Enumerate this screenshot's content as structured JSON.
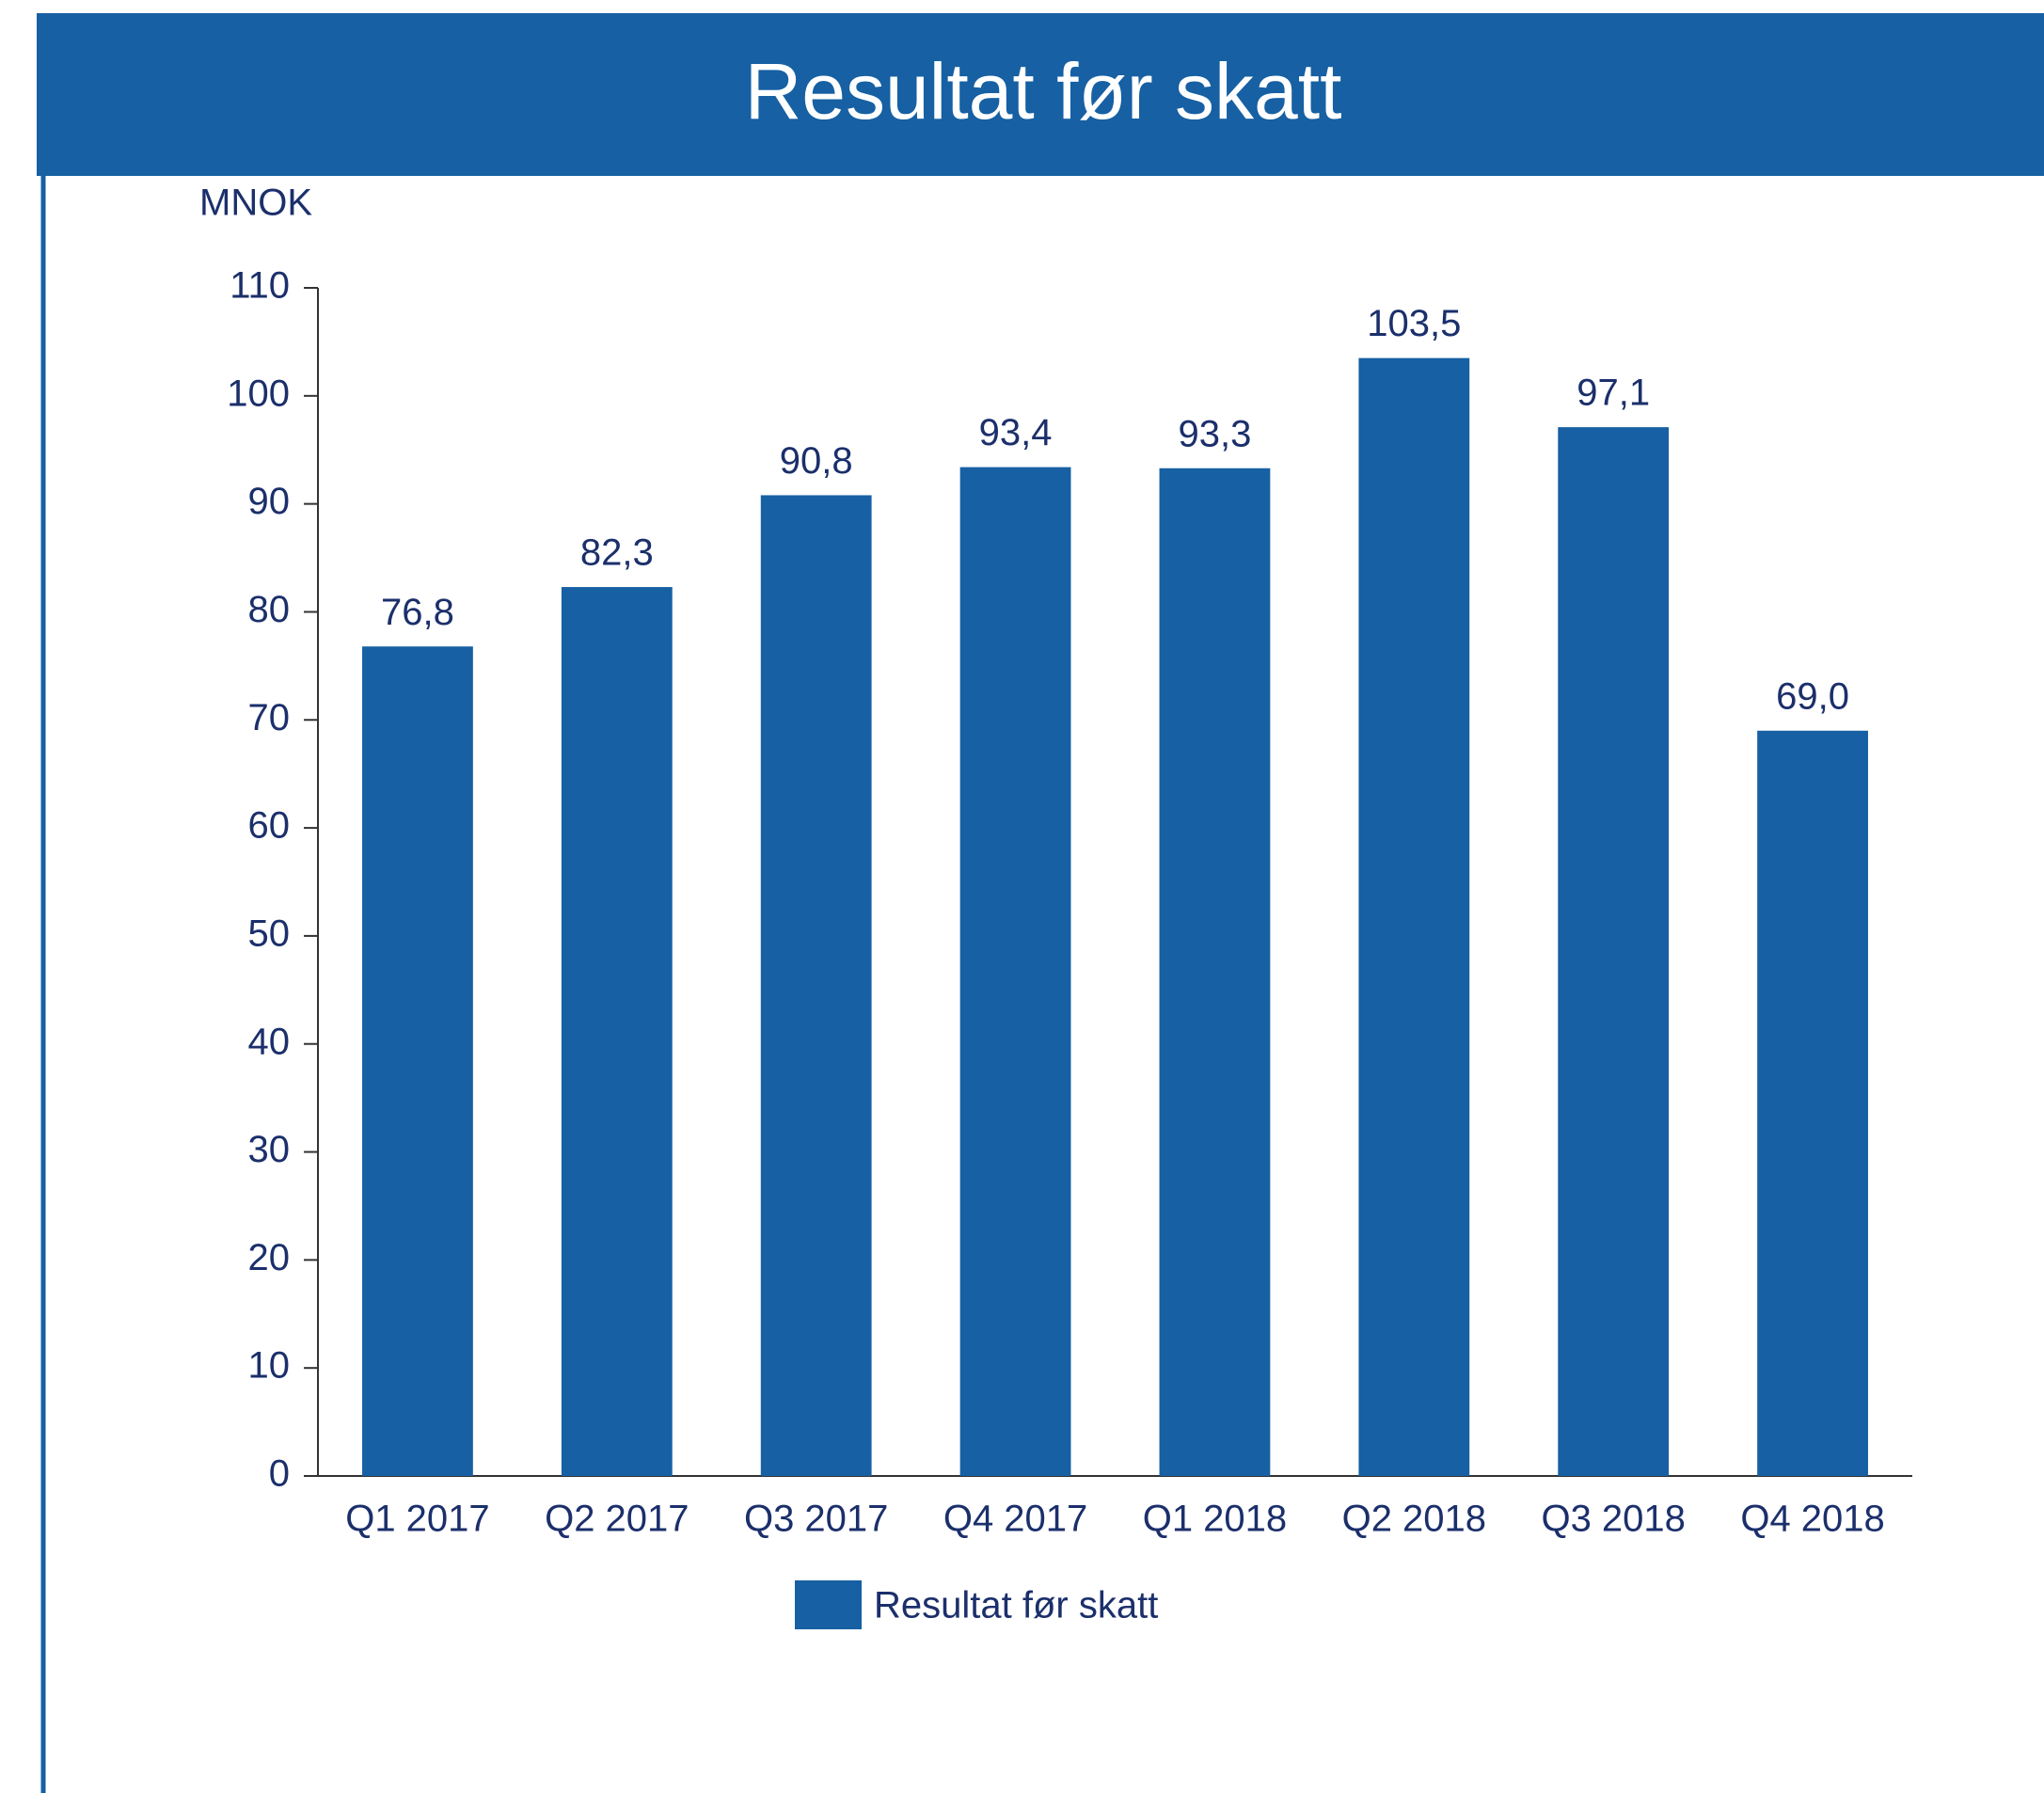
{
  "chart_data": {
    "type": "bar",
    "title": "Resultat før skatt",
    "y_label": "MNOK",
    "categories": [
      "Q1 2017",
      "Q2 2017",
      "Q3 2017",
      "Q4 2017",
      "Q1 2018",
      "Q2 2018",
      "Q3 2018",
      "Q4 2018"
    ],
    "series": [
      {
        "name": "Resultat før skatt",
        "color": "#1660a3",
        "values": [
          76.8,
          82.3,
          90.8,
          93.4,
          93.3,
          103.5,
          97.1,
          69.0
        ],
        "value_labels": [
          "76,8",
          "82,3",
          "90,8",
          "93,4",
          "93,3",
          "103,5",
          "97,1",
          "69,0"
        ]
      }
    ],
    "ylim": [
      0,
      110
    ],
    "yticks": [
      0,
      10,
      20,
      30,
      40,
      50,
      60,
      70,
      80,
      90,
      100,
      110
    ],
    "legend": "bottom"
  }
}
